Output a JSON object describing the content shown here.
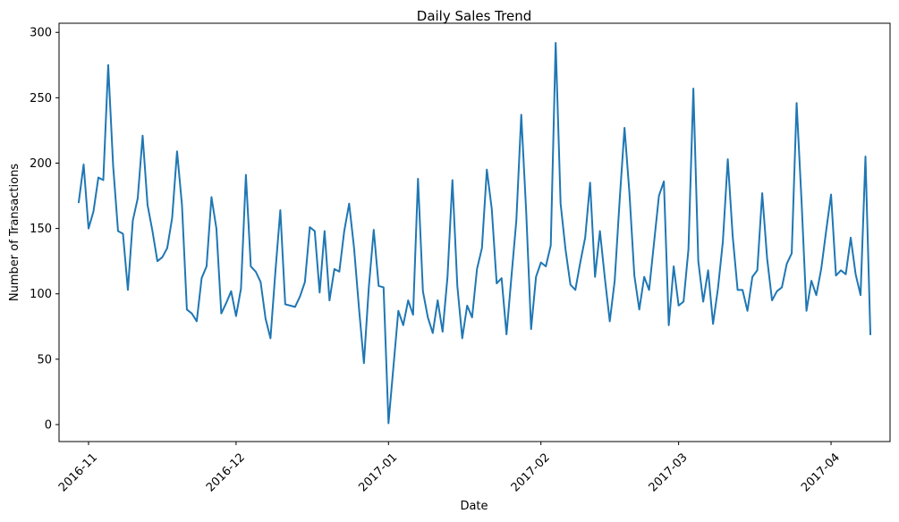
{
  "chart_data": {
    "type": "line",
    "title": "Daily Sales Trend",
    "xlabel": "Date",
    "ylabel": "Number of Transactions",
    "x_start": "2016-10-30",
    "x_end": "2017-04-09",
    "xlim": [
      "2016-10-26",
      "2017-04-13"
    ],
    "ylim": [
      -13,
      307
    ],
    "x_ticks": [
      {
        "date": "2016-11-01",
        "label": "2016-11"
      },
      {
        "date": "2016-12-01",
        "label": "2016-12"
      },
      {
        "date": "2017-01-01",
        "label": "2017-01"
      },
      {
        "date": "2017-02-01",
        "label": "2017-02"
      },
      {
        "date": "2017-03-01",
        "label": "2017-03"
      },
      {
        "date": "2017-04-01",
        "label": "2017-04"
      }
    ],
    "y_ticks": [
      0,
      50,
      100,
      150,
      200,
      250,
      300
    ],
    "grid": false,
    "line_color": "#1f77b4",
    "values": [
      170,
      199,
      150,
      163,
      189,
      187,
      275,
      198,
      148,
      146,
      103,
      156,
      173,
      221,
      168,
      148,
      125,
      128,
      135,
      158,
      209,
      168,
      88,
      85,
      79,
      112,
      121,
      174,
      150,
      85,
      93,
      102,
      83,
      104,
      191,
      121,
      117,
      109,
      81,
      66,
      117,
      164,
      92,
      91,
      90,
      98,
      109,
      151,
      148,
      101,
      148,
      95,
      119,
      117,
      148,
      169,
      135,
      89,
      47,
      105,
      149,
      106,
      105,
      1,
      44,
      87,
      76,
      95,
      84,
      188,
      102,
      82,
      70,
      95,
      71,
      113,
      187,
      106,
      66,
      91,
      82,
      119,
      135,
      195,
      165,
      108,
      112,
      69,
      113,
      156,
      237,
      163,
      73,
      113,
      124,
      121,
      137,
      292,
      169,
      134,
      107,
      103,
      124,
      143,
      185,
      113,
      148,
      112,
      79,
      110,
      171,
      227,
      177,
      114,
      88,
      113,
      103,
      139,
      175,
      186,
      76,
      121,
      91,
      94,
      134,
      257,
      125,
      94,
      118,
      77,
      104,
      140,
      203,
      144,
      103,
      103,
      87,
      113,
      118,
      177,
      127,
      95,
      102,
      105,
      123,
      131,
      246,
      171,
      87,
      110,
      99,
      119,
      148,
      176,
      114,
      118,
      115,
      143,
      115,
      99,
      205,
      69
    ]
  }
}
